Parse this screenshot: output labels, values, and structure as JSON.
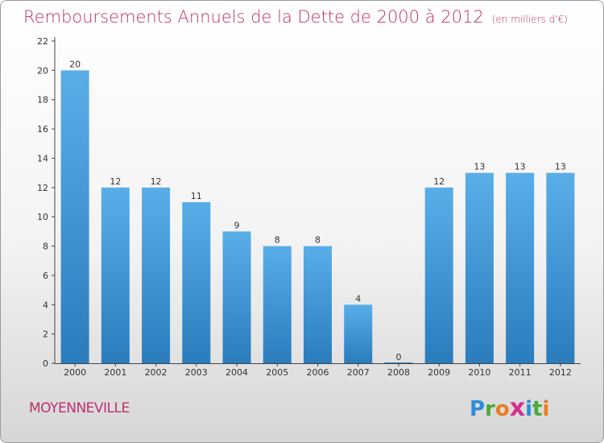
{
  "header": {
    "title": "Remboursements Annuels de la Dette de 2000 à 2012",
    "unit": "(en milliers d'€)"
  },
  "footer": {
    "commune": "MOYENNEVILLE",
    "logo_letters": [
      {
        "ch": "P",
        "color": "#2e8bd6"
      },
      {
        "ch": "r",
        "color": "#4aa839"
      },
      {
        "ch": "o",
        "color": "#e67e22"
      },
      {
        "ch": "x",
        "color": "#d22f8a"
      },
      {
        "ch": "i",
        "color": "#2e8bd6"
      },
      {
        "ch": "t",
        "color": "#4aa839"
      },
      {
        "ch": "i",
        "color": "#e67e22"
      }
    ]
  },
  "colors": {
    "title": "#c0306b",
    "bar_top": "#5aaee8",
    "bar_bottom": "#2a7cbc"
  },
  "chart_data": {
    "type": "bar",
    "title": "Remboursements Annuels de la Dette de 2000 à 2012",
    "unit": "(en milliers d'€)",
    "categories": [
      "2000",
      "2001",
      "2002",
      "2003",
      "2004",
      "2005",
      "2006",
      "2007",
      "2008",
      "2009",
      "2010",
      "2011",
      "2012"
    ],
    "values": [
      20,
      12,
      12,
      11,
      9,
      8,
      8,
      4,
      0,
      12,
      13,
      13,
      13
    ],
    "ylim": [
      0,
      22
    ],
    "yticks": [
      0,
      2,
      4,
      6,
      8,
      10,
      12,
      14,
      16,
      18,
      20,
      22
    ],
    "grid": false,
    "legend": "none"
  }
}
